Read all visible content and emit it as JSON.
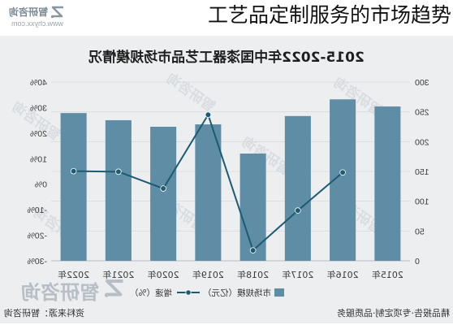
{
  "caption": "工艺品定制服务的市场趋势",
  "brand": {
    "name": "智研咨询",
    "url": "www.chyxx.com",
    "logo_icon": "zhiyan-logo-icon"
  },
  "watermark": {
    "text": "智研咨询"
  },
  "footer": {
    "source": "资料来源：智研咨询",
    "slogan": "精品报告·专项定制·品质服务"
  },
  "colors": {
    "bar": "#5f8da6",
    "line": "#1d5a73",
    "panel": "#eceef0",
    "grid": "#d6dade",
    "axis_text": "#3a3a3a"
  },
  "chart_data": {
    "type": "bar",
    "title": "2015-2022年中国漆器工艺品市场规模情况",
    "categories": [
      "2015年",
      "2016年",
      "2017年",
      "2018年",
      "2019年",
      "2020年",
      "2021年",
      "2022年"
    ],
    "series": [
      {
        "name": "市场规模（亿元）",
        "type": "bar",
        "values": [
          259,
          271,
          243,
          180,
          229,
          225,
          236,
          248
        ]
      },
      {
        "name": "增速（%）",
        "type": "line",
        "values": [
          null,
          4.6,
          -10.3,
          -25.9,
          27.2,
          -1.7,
          4.9,
          5.1
        ]
      }
    ],
    "y_axes": [
      {
        "ylim": [
          0,
          300
        ],
        "ticks": [
          0,
          50,
          100,
          150,
          200,
          250,
          300
        ],
        "tick_labels": [
          "0",
          "50",
          "100",
          "150",
          "200",
          "250",
          "300"
        ]
      },
      {
        "ylim": [
          -30,
          40
        ],
        "ticks": [
          -30,
          -20,
          -10,
          0,
          10,
          20,
          30,
          40
        ],
        "tick_labels": [
          "-30%",
          "-20%",
          "-10%",
          "0%",
          "10%",
          "20%",
          "30%",
          "40%"
        ]
      }
    ],
    "legend": {
      "placement": "bottom"
    },
    "grid": true
  }
}
